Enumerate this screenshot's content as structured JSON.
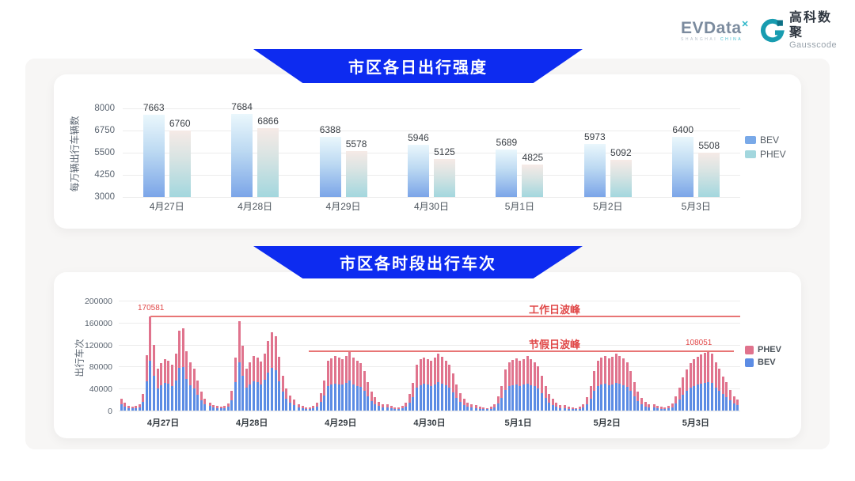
{
  "header": {
    "evdata": {
      "name": "EVData",
      "sup": "✕",
      "sub_left": "SHANGHAI",
      "sub_right": "CHINA"
    },
    "gausscode": {
      "cn": "高科数聚",
      "en": "Gausscode"
    }
  },
  "colors": {
    "banner_blue": "#0d2bf0",
    "bev_blue": "#5c8ce4",
    "phev_pink": "#e0738d",
    "legend_bev_top": "#79a9e8",
    "legend_phev_top": "#a3d7de",
    "annotation_red": "#e04848",
    "panel_bg": "#f7f6f5"
  },
  "chart_data": [
    {
      "type": "bar",
      "title": "市区各日出行强度",
      "ylabel": "每万辆出行车辆数",
      "ymin": 3000,
      "ymax": 8000,
      "yticks": [
        8000,
        6750,
        5500,
        4250,
        3000
      ],
      "categories": [
        "4月27日",
        "4月28日",
        "4月29日",
        "4月30日",
        "5月1日",
        "5月2日",
        "5月3日"
      ],
      "series": [
        {
          "name": "BEV",
          "values": [
            7663,
            7684,
            6388,
            5946,
            5689,
            5973,
            6400
          ]
        },
        {
          "name": "PHEV",
          "values": [
            6760,
            6866,
            5578,
            5125,
            4825,
            5092,
            5508
          ]
        }
      ],
      "legend": [
        "BEV",
        "PHEV"
      ],
      "legend_position": "right",
      "grid": true
    },
    {
      "type": "bar-stacked-hourly",
      "title": "市区各时段出行车次",
      "ylabel": "出行车次",
      "ymin": 0,
      "ymax": 200000,
      "yticks": [
        200000,
        160000,
        120000,
        80000,
        40000,
        0
      ],
      "legend": [
        "PHEV",
        "BEV"
      ],
      "legend_position": "right",
      "grid": true,
      "annotations": [
        {
          "label": "工作日波峰",
          "value": 170581,
          "value_label": "170581"
        },
        {
          "label": "节假日波峰",
          "value": 108051,
          "value_label": "108051"
        }
      ],
      "days": [
        {
          "label": "4月27日",
          "bev_ratio": 0.53,
          "totals": [
            21000,
            14000,
            9000,
            7000,
            8000,
            12000,
            30000,
            101000,
            170581,
            119000,
            77000,
            87000,
            94000,
            91000,
            83000,
            104000,
            146000,
            150000,
            108000,
            88000,
            76000,
            55000,
            34000,
            22000
          ]
        },
        {
          "label": "4月28日",
          "bev_ratio": 0.54,
          "totals": [
            15000,
            10000,
            8000,
            7000,
            9000,
            13000,
            36000,
            96000,
            163000,
            118000,
            76000,
            88000,
            99000,
            96000,
            89000,
            103000,
            127000,
            143000,
            135000,
            98000,
            63000,
            40000,
            27000,
            20000
          ]
        },
        {
          "label": "4月29日",
          "bev_ratio": 0.5,
          "totals": [
            12000,
            8000,
            6000,
            6000,
            9000,
            15000,
            32000,
            55000,
            90000,
            95000,
            99000,
            96000,
            94000,
            100000,
            108000,
            96000,
            90000,
            86000,
            72000,
            52000,
            34000,
            24000,
            16000,
            12000
          ]
        },
        {
          "label": "4月30日",
          "bev_ratio": 0.5,
          "totals": [
            11000,
            8000,
            6000,
            6000,
            8000,
            14000,
            30000,
            50000,
            83000,
            93000,
            97000,
            94000,
            90000,
            96000,
            103000,
            98000,
            91000,
            83000,
            67000,
            47000,
            31000,
            21000,
            15000,
            11000
          ]
        },
        {
          "label": "5月1日",
          "bev_ratio": 0.5,
          "totals": [
            10000,
            7000,
            6000,
            5000,
            7000,
            12000,
            26000,
            45000,
            75000,
            88000,
            92000,
            95000,
            90000,
            94000,
            99000,
            93000,
            88000,
            80000,
            64000,
            45000,
            30000,
            21000,
            14000,
            10000
          ]
        },
        {
          "label": "5月2日",
          "bev_ratio": 0.49,
          "totals": [
            10000,
            7000,
            6000,
            5000,
            7000,
            12000,
            25000,
            44000,
            72000,
            90000,
            97000,
            99000,
            95000,
            98000,
            104000,
            100000,
            95000,
            88000,
            72000,
            52000,
            34000,
            23000,
            16000,
            12000
          ]
        },
        {
          "label": "5月3日",
          "bev_ratio": 0.48,
          "totals": [
            11000,
            8000,
            7000,
            6000,
            8000,
            13000,
            26000,
            42000,
            60000,
            75000,
            86000,
            93000,
            98000,
            102000,
            105000,
            108051,
            104000,
            88000,
            76000,
            62000,
            52000,
            38000,
            26000,
            20000
          ]
        }
      ]
    }
  ]
}
